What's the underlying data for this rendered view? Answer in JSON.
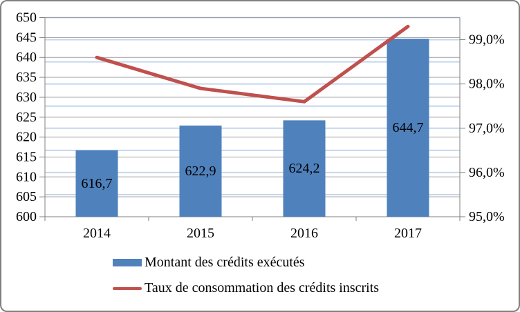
{
  "chart_data": {
    "type": "bar",
    "subtype": "combo-bar-line-dual-axis",
    "title": "",
    "categories": [
      "2014",
      "2015",
      "2016",
      "2017"
    ],
    "series": [
      {
        "name": "Montant des crédits exécutés",
        "type": "bar",
        "axis": "left",
        "color": "#4f81bd",
        "values": [
          616.7,
          622.9,
          624.2,
          644.7
        ],
        "value_labels": [
          "616,7",
          "622,9",
          "624,2",
          "644,7"
        ]
      },
      {
        "name": "Taux de consommation des crédits inscrits",
        "type": "line",
        "axis": "right",
        "color": "#c0504d",
        "values": [
          98.6,
          97.9,
          97.6,
          99.3
        ]
      }
    ],
    "axes": {
      "left": {
        "min": 600,
        "max": 650,
        "tick_step": 5,
        "tick_labels": [
          "600",
          "605",
          "610",
          "615",
          "620",
          "625",
          "630",
          "635",
          "640",
          "645",
          "650"
        ]
      },
      "right": {
        "min": 95.0,
        "max": 99.5,
        "label_step": 1.0,
        "grid_step": 0.5,
        "tick_labels": [
          "95,0%",
          "96,0%",
          "97,0%",
          "98,0%",
          "99,0%"
        ]
      }
    },
    "grid": true,
    "legend_position": "bottom"
  },
  "colors": {
    "bar": "#4f81bd",
    "line": "#c0504d",
    "grid_major": "#9c9c9c",
    "grid_right": "#c4d6ee",
    "axis": "#7f7f7f",
    "text": "#000000",
    "frame_border": "#7f7f7f"
  }
}
